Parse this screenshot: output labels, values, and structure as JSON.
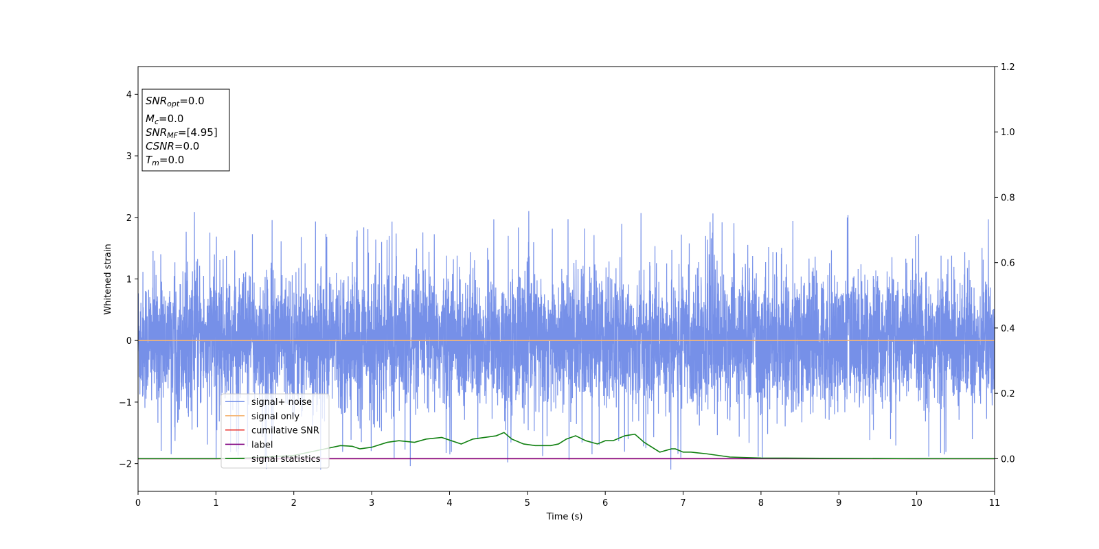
{
  "chart_data": {
    "type": "line",
    "xlabel": "Time (s)",
    "ylabel": "Whitened strain",
    "xlim": [
      0,
      11
    ],
    "ylim_left": [
      -2.45,
      4.45
    ],
    "ylim_right": [
      -0.1,
      1.2
    ],
    "x_ticks": [
      0,
      1,
      2,
      3,
      4,
      5,
      6,
      7,
      8,
      9,
      10,
      11
    ],
    "y_ticks_left": [
      -2,
      -1,
      0,
      1,
      2,
      3,
      4
    ],
    "y_ticks_right": [
      0.0,
      0.2,
      0.4,
      0.6,
      0.8,
      1.0,
      1.2
    ],
    "legend_position": "lower-left",
    "colors": {
      "signal_noise": "#6a87e6",
      "signal_only": "#f5b574",
      "cumulative_snr": "#e8221c",
      "label": "#800080",
      "signal_statistics": "#108010"
    },
    "series": [
      {
        "name": "signal+ noise",
        "axis": "left",
        "description_values": "noise centred at 0, amplitude mostly within ±1.4 with spikes to about ±2.2",
        "amplitude_typical": 1.0,
        "peak_max": 2.18,
        "peak_min": -2.12
      },
      {
        "name": "signal only",
        "axis": "left",
        "x": [
          0,
          11
        ],
        "y": [
          0,
          0
        ]
      },
      {
        "name": "cumilative SNR",
        "axis": "right",
        "x": [
          0,
          11
        ],
        "y": [
          0,
          0
        ]
      },
      {
        "name": "label",
        "axis": "right",
        "x": [
          0,
          11
        ],
        "y": [
          0,
          0
        ]
      },
      {
        "name": "signal statistics",
        "axis": "right",
        "x": [
          0,
          1.0,
          1.5,
          2.0,
          2.4,
          2.6,
          2.75,
          2.85,
          3.0,
          3.2,
          3.35,
          3.55,
          3.7,
          3.9,
          4.15,
          4.3,
          4.45,
          4.6,
          4.7,
          4.8,
          4.95,
          5.1,
          5.3,
          5.4,
          5.5,
          5.62,
          5.75,
          5.9,
          6.0,
          6.1,
          6.25,
          6.38,
          6.5,
          6.7,
          6.85,
          6.9,
          7.0,
          7.1,
          7.3,
          7.6,
          8.0,
          9.0,
          10.0,
          11.0
        ],
        "y": [
          0.0,
          0.0,
          0.003,
          0.01,
          0.03,
          0.04,
          0.038,
          0.03,
          0.035,
          0.05,
          0.055,
          0.05,
          0.06,
          0.065,
          0.045,
          0.06,
          0.065,
          0.07,
          0.08,
          0.06,
          0.045,
          0.04,
          0.04,
          0.045,
          0.06,
          0.07,
          0.055,
          0.045,
          0.055,
          0.055,
          0.07,
          0.075,
          0.05,
          0.02,
          0.03,
          0.03,
          0.02,
          0.02,
          0.015,
          0.005,
          0.002,
          0.001,
          0.0,
          0.0
        ]
      }
    ],
    "annotation_box": {
      "lines": [
        {
          "sym": "SNR",
          "sub": "opt",
          "val": "=0.0"
        },
        {
          "sym": "M",
          "sub": "c",
          "val": "=0.0"
        },
        {
          "sym": "SNR",
          "sub": "MF",
          "val": "=[4.95]"
        },
        {
          "sym": "CSNR",
          "sub": "",
          "val": "=0.0"
        },
        {
          "sym": "T",
          "sub": "m",
          "val": "=0.0"
        }
      ]
    },
    "legend": [
      "signal+ noise",
      "signal only",
      "cumilative SNR",
      "label",
      "signal statistics"
    ]
  }
}
